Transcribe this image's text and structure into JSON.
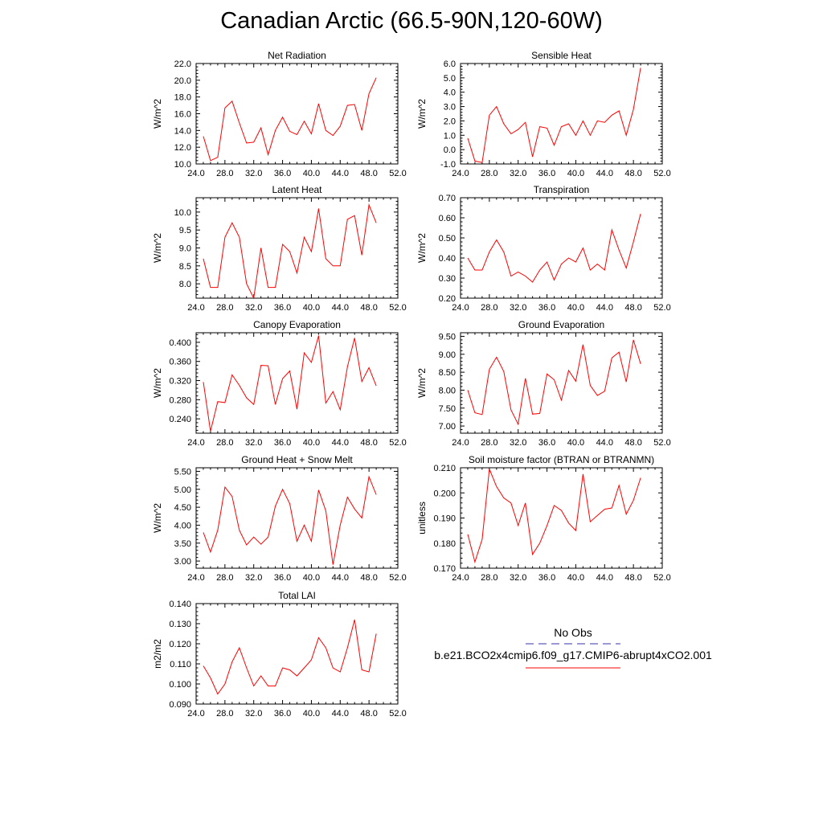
{
  "title": "Canadian Arctic (66.5-90N,120-60W)",
  "colors": {
    "series": "#ff0000",
    "obs": "#3333aa",
    "axis": "#000000"
  },
  "legend": {
    "obs_label": "No Obs",
    "case_label": "b.e21.BCO2x4cmip6.f09_g17.CMIP6-abrupt4xCO2.001"
  },
  "chart_data": [
    {
      "type": "line",
      "title": "Net Radiation",
      "ylabel": "W/m^2",
      "xlim": [
        24,
        52
      ],
      "ylim": [
        10,
        22
      ],
      "xticks": [
        "24.0",
        "28.0",
        "32.0",
        "36.0",
        "40.0",
        "44.0",
        "48.0",
        "52.0"
      ],
      "yticks": [
        "10.0",
        "12.0",
        "14.0",
        "16.0",
        "18.0",
        "20.0",
        "22.0"
      ],
      "x": [
        25,
        26,
        27,
        28,
        29,
        30,
        31,
        32,
        33,
        34,
        35,
        36,
        37,
        38,
        39,
        40,
        41,
        42,
        43,
        44,
        45,
        46,
        47,
        48,
        49
      ],
      "y": [
        13.3,
        10.4,
        10.8,
        16.7,
        17.5,
        14.9,
        12.5,
        12.6,
        14.3,
        11.1,
        14.0,
        15.6,
        13.9,
        13.5,
        15.1,
        13.6,
        17.2,
        14.0,
        13.4,
        14.5,
        17.0,
        17.1,
        14.0,
        18.4,
        20.3
      ]
    },
    {
      "type": "line",
      "title": "Sensible Heat",
      "ylabel": "W/m^2",
      "xlim": [
        24,
        52
      ],
      "ylim": [
        -1,
        6
      ],
      "xticks": [
        "24.0",
        "28.0",
        "32.0",
        "36.0",
        "40.0",
        "44.0",
        "48.0",
        "52.0"
      ],
      "yticks": [
        "-1.0",
        "0.0",
        "1.0",
        "2.0",
        "3.0",
        "4.0",
        "5.0",
        "6.0"
      ],
      "x": [
        25,
        26,
        27,
        28,
        29,
        30,
        31,
        32,
        33,
        34,
        35,
        36,
        37,
        38,
        39,
        40,
        41,
        42,
        43,
        44,
        45,
        46,
        47,
        48,
        49
      ],
      "y": [
        0.8,
        -0.8,
        -0.9,
        2.4,
        3.0,
        1.8,
        1.1,
        1.4,
        1.9,
        -0.5,
        1.6,
        1.5,
        0.3,
        1.6,
        1.8,
        1.0,
        2.0,
        1.0,
        2.0,
        1.9,
        2.4,
        2.7,
        1.0,
        2.8,
        5.7
      ]
    },
    {
      "type": "line",
      "title": "Latent Heat",
      "ylabel": "W/m^2",
      "xlim": [
        24,
        52
      ],
      "ylim": [
        7.6,
        10.4
      ],
      "xticks": [
        "24.0",
        "28.0",
        "32.0",
        "36.0",
        "40.0",
        "44.0",
        "48.0",
        "52.0"
      ],
      "yticks": [
        "8.0",
        "8.5",
        "9.0",
        "9.5",
        "10.0"
      ],
      "x": [
        25,
        26,
        27,
        28,
        29,
        30,
        31,
        32,
        33,
        34,
        35,
        36,
        37,
        38,
        39,
        40,
        41,
        42,
        43,
        44,
        45,
        46,
        47,
        48,
        49
      ],
      "y": [
        8.7,
        7.9,
        7.9,
        9.3,
        9.7,
        9.3,
        8.0,
        7.6,
        9.0,
        7.9,
        7.9,
        9.1,
        8.9,
        8.3,
        9.3,
        8.9,
        10.1,
        8.7,
        8.5,
        8.5,
        9.8,
        9.9,
        8.8,
        10.2,
        9.7
      ]
    },
    {
      "type": "line",
      "title": "Transpiration",
      "ylabel": "W/m^2",
      "xlim": [
        24,
        52
      ],
      "ylim": [
        0.2,
        0.7
      ],
      "xticks": [
        "24.0",
        "28.0",
        "32.0",
        "36.0",
        "40.0",
        "44.0",
        "48.0",
        "52.0"
      ],
      "yticks": [
        "0.20",
        "0.30",
        "0.40",
        "0.50",
        "0.60",
        "0.70"
      ],
      "x": [
        25,
        26,
        27,
        28,
        29,
        30,
        31,
        32,
        33,
        34,
        35,
        36,
        37,
        38,
        39,
        40,
        41,
        42,
        43,
        44,
        45,
        46,
        47,
        48,
        49
      ],
      "y": [
        0.4,
        0.34,
        0.34,
        0.43,
        0.49,
        0.43,
        0.31,
        0.33,
        0.31,
        0.28,
        0.34,
        0.38,
        0.29,
        0.37,
        0.4,
        0.38,
        0.45,
        0.34,
        0.37,
        0.34,
        0.54,
        0.44,
        0.35,
        0.48,
        0.62
      ]
    },
    {
      "type": "line",
      "title": "Canopy Evaporation",
      "ylabel": "W/m^2",
      "xlim": [
        24,
        52
      ],
      "ylim": [
        0.21,
        0.42
      ],
      "xticks": [
        "24.0",
        "28.0",
        "32.0",
        "36.0",
        "40.0",
        "44.0",
        "48.0",
        "52.0"
      ],
      "yticks": [
        "0.240",
        "0.280",
        "0.320",
        "0.360",
        "0.400"
      ],
      "x": [
        25,
        26,
        27,
        28,
        29,
        30,
        31,
        32,
        33,
        34,
        35,
        36,
        37,
        38,
        39,
        40,
        41,
        42,
        43,
        44,
        45,
        46,
        47,
        48,
        49
      ],
      "y": [
        0.317,
        0.214,
        0.276,
        0.274,
        0.332,
        0.31,
        0.284,
        0.27,
        0.352,
        0.351,
        0.27,
        0.324,
        0.34,
        0.26,
        0.378,
        0.358,
        0.414,
        0.273,
        0.297,
        0.259,
        0.349,
        0.409,
        0.318,
        0.347,
        0.309
      ]
    },
    {
      "type": "line",
      "title": "Ground Evaporation",
      "ylabel": "W/m^2",
      "xlim": [
        24,
        52
      ],
      "ylim": [
        6.8,
        9.6
      ],
      "xticks": [
        "24.0",
        "28.0",
        "32.0",
        "36.0",
        "40.0",
        "44.0",
        "48.0",
        "52.0"
      ],
      "yticks": [
        "7.00",
        "7.50",
        "8.00",
        "8.50",
        "9.00",
        "9.50"
      ],
      "x": [
        25,
        26,
        27,
        28,
        29,
        30,
        31,
        32,
        33,
        34,
        35,
        36,
        37,
        38,
        39,
        40,
        41,
        42,
        43,
        44,
        45,
        46,
        47,
        48,
        49
      ],
      "y": [
        8.0,
        7.37,
        7.32,
        8.58,
        8.92,
        8.52,
        7.45,
        7.05,
        8.33,
        7.33,
        7.35,
        8.45,
        8.29,
        7.72,
        8.55,
        8.25,
        9.27,
        8.13,
        7.85,
        7.97,
        8.9,
        9.06,
        8.23,
        9.4,
        8.73
      ]
    },
    {
      "type": "line",
      "title": "Ground Heat + Snow Melt",
      "ylabel": "W/m^2",
      "xlim": [
        24,
        52
      ],
      "ylim": [
        2.8,
        5.6
      ],
      "xticks": [
        "24.0",
        "28.0",
        "32.0",
        "36.0",
        "40.0",
        "44.0",
        "48.0",
        "52.0"
      ],
      "yticks": [
        "3.00",
        "3.50",
        "4.00",
        "4.50",
        "5.00",
        "5.50"
      ],
      "x": [
        25,
        26,
        27,
        28,
        29,
        30,
        31,
        32,
        33,
        34,
        35,
        36,
        37,
        38,
        39,
        40,
        41,
        42,
        43,
        44,
        45,
        46,
        47,
        48,
        49
      ],
      "y": [
        3.8,
        3.25,
        3.86,
        5.06,
        4.8,
        3.86,
        3.45,
        3.67,
        3.47,
        3.67,
        4.53,
        5.0,
        4.6,
        3.55,
        4.0,
        3.55,
        4.98,
        4.4,
        2.9,
        4.0,
        4.78,
        4.45,
        4.2,
        5.35,
        4.85
      ]
    },
    {
      "type": "line",
      "title": "Soil moisture factor (BTRAN or BTRANMN)",
      "ylabel": "unitless",
      "xlim": [
        24,
        52
      ],
      "ylim": [
        0.17,
        0.21
      ],
      "xticks": [
        "24.0",
        "28.0",
        "32.0",
        "36.0",
        "40.0",
        "44.0",
        "48.0",
        "52.0"
      ],
      "yticks": [
        "0.170",
        "0.180",
        "0.190",
        "0.200",
        "0.210"
      ],
      "x": [
        25,
        26,
        27,
        28,
        29,
        30,
        31,
        32,
        33,
        34,
        35,
        36,
        37,
        38,
        39,
        40,
        41,
        42,
        43,
        44,
        45,
        46,
        47,
        48,
        49
      ],
      "y": [
        0.1835,
        0.1725,
        0.1815,
        0.2095,
        0.2025,
        0.198,
        0.196,
        0.187,
        0.196,
        0.1755,
        0.18,
        0.187,
        0.195,
        0.193,
        0.188,
        0.185,
        0.2075,
        0.1885,
        0.191,
        0.1935,
        0.194,
        0.203,
        0.1915,
        0.197,
        0.206
      ]
    },
    {
      "type": "line",
      "title": "Total LAI",
      "ylabel": "m2/m2",
      "xlim": [
        24,
        52
      ],
      "ylim": [
        0.09,
        0.14
      ],
      "xticks": [
        "24.0",
        "28.0",
        "32.0",
        "36.0",
        "40.0",
        "44.0",
        "48.0",
        "52.0"
      ],
      "yticks": [
        "0.090",
        "0.100",
        "0.110",
        "0.120",
        "0.130",
        "0.140"
      ],
      "x": [
        25,
        26,
        27,
        28,
        29,
        30,
        31,
        32,
        33,
        34,
        35,
        36,
        37,
        38,
        39,
        40,
        41,
        42,
        43,
        44,
        45,
        46,
        47,
        48,
        49
      ],
      "y": [
        0.109,
        0.103,
        0.095,
        0.1,
        0.111,
        0.118,
        0.108,
        0.099,
        0.104,
        0.099,
        0.099,
        0.108,
        0.107,
        0.104,
        0.108,
        0.112,
        0.123,
        0.118,
        0.108,
        0.106,
        0.118,
        0.132,
        0.107,
        0.106,
        0.125
      ]
    }
  ]
}
